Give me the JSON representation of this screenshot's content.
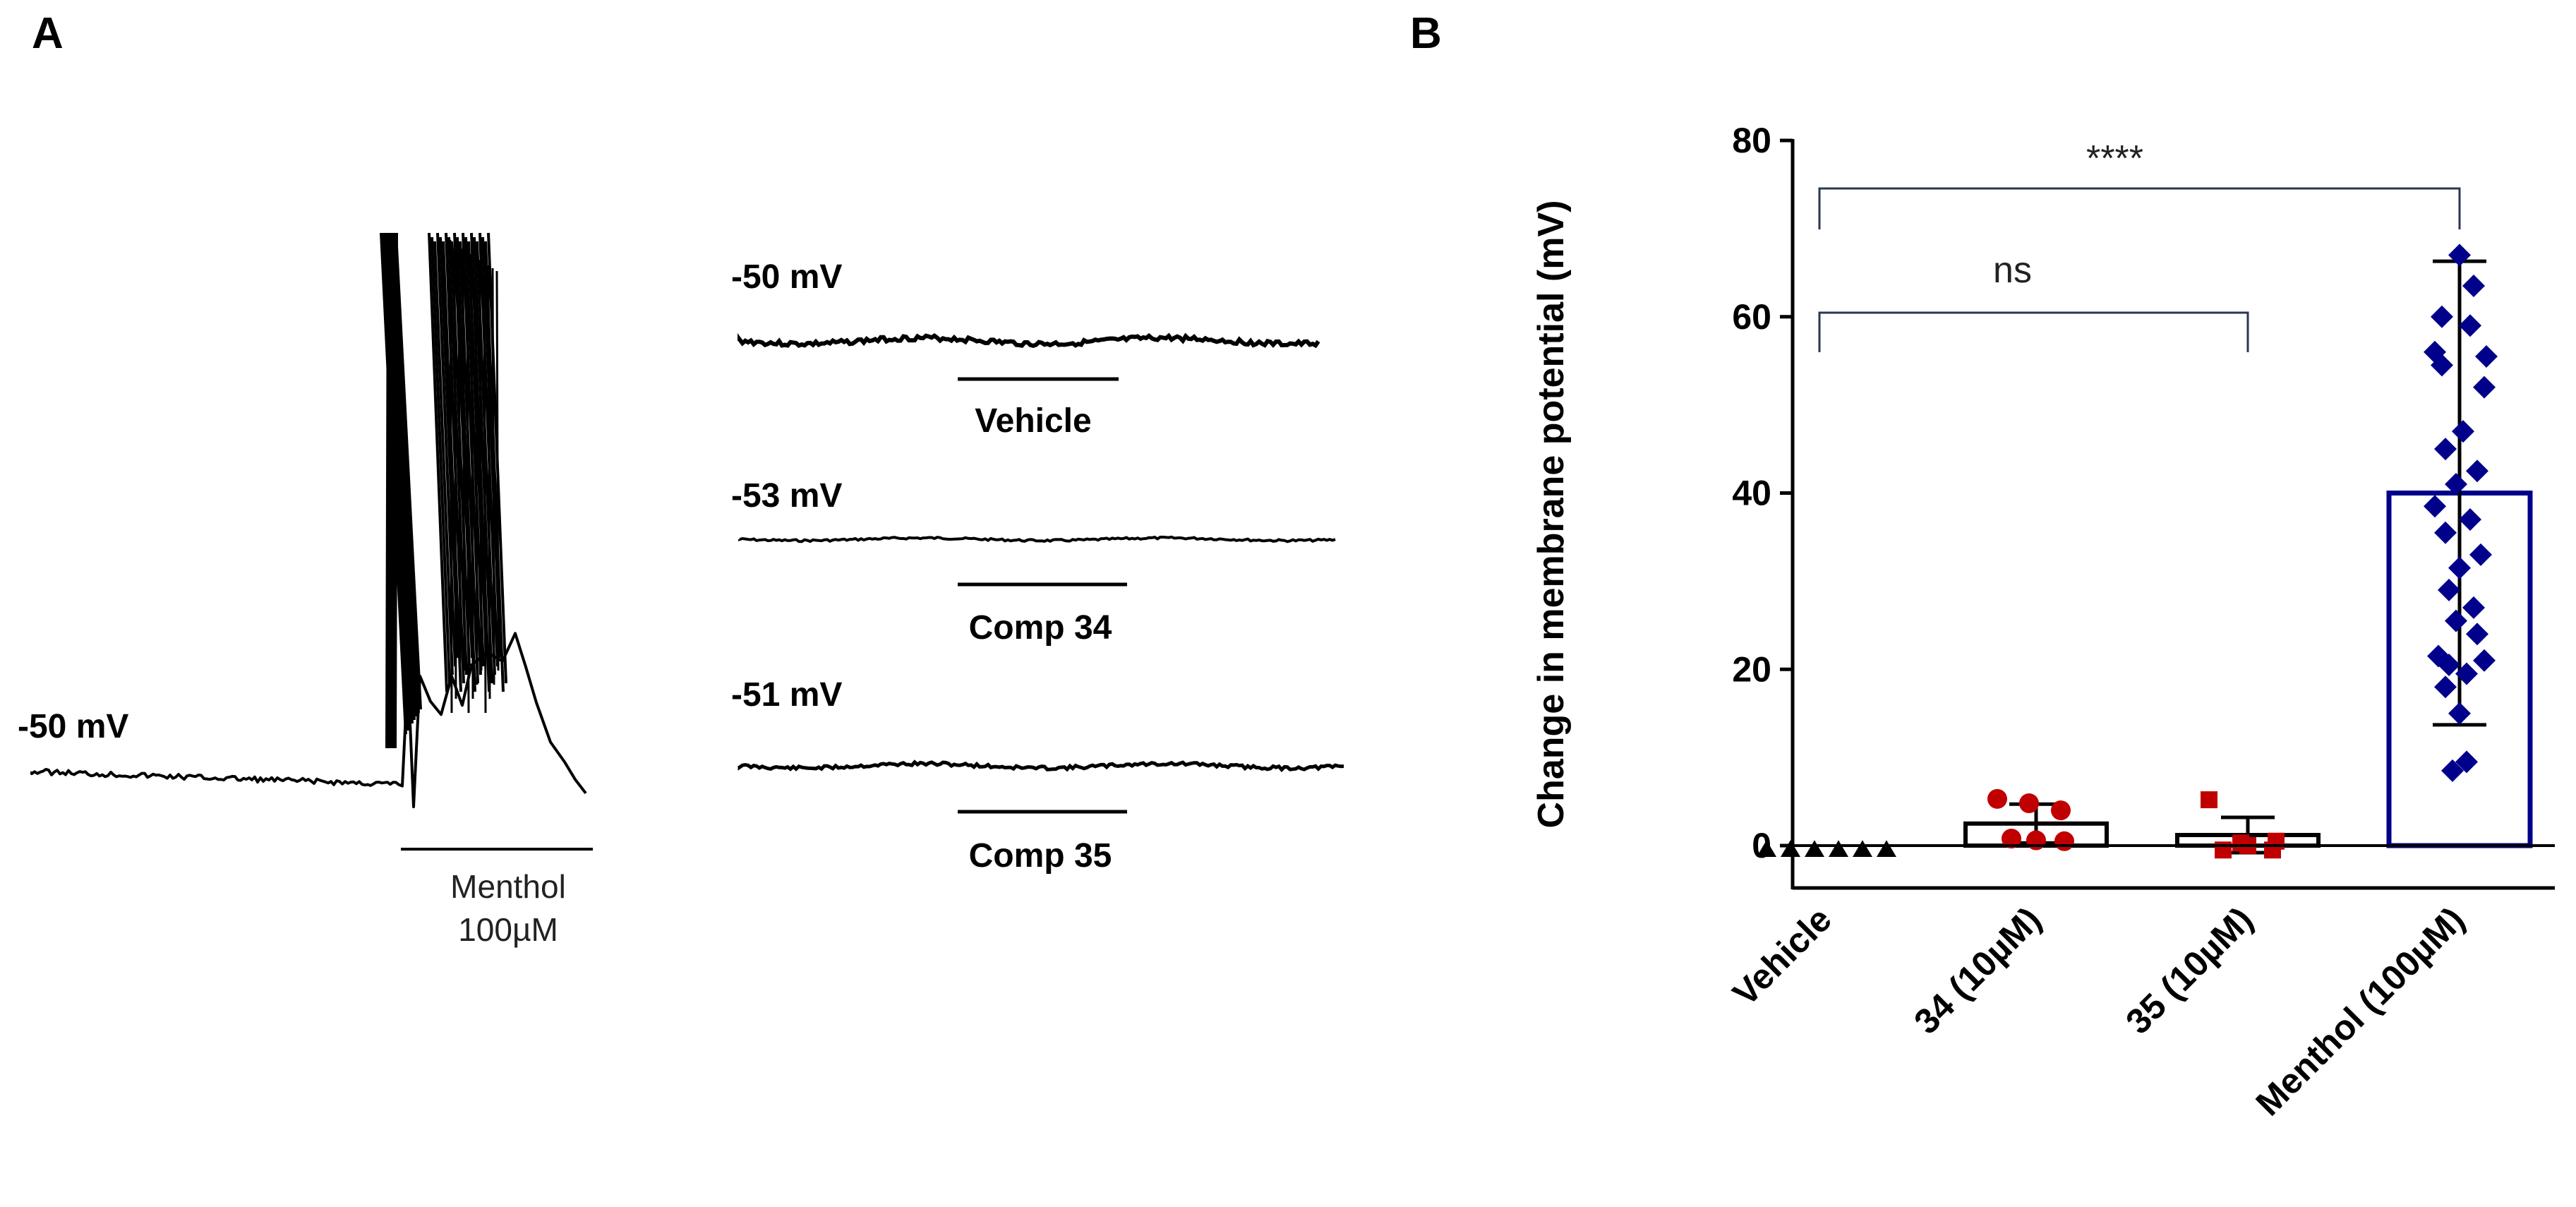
{
  "panels": {
    "a_label": "A",
    "b_label": "B"
  },
  "panel_a": {
    "main_trace": {
      "baseline_label": "-50 mV",
      "stim_line1": "Menthol",
      "stim_line2": "100µM"
    },
    "traces": [
      {
        "baseline_label": "-50 mV",
        "stim_label": "Vehicle"
      },
      {
        "baseline_label": "-53 mV",
        "stim_label": "Comp 34"
      },
      {
        "baseline_label": "-51 mV",
        "stim_label": "Comp 35"
      }
    ]
  },
  "chart_data": {
    "type": "bar",
    "title": "",
    "xlabel": "",
    "ylabel": "Change in membrane potential (mV)",
    "ylim": [
      0,
      80
    ],
    "yticks": [
      0,
      20,
      40,
      60,
      80
    ],
    "categories": [
      "Vehicle",
      "34 (10µM)",
      "35 (10µM)",
      "Menthol (100µM)"
    ],
    "means": [
      0,
      2.5,
      1.2,
      40
    ],
    "errors": [
      0,
      2.2,
      2.0,
      26.3
    ],
    "colors": [
      "#000000",
      "#c00000",
      "#c00000",
      "#00008b"
    ],
    "markers": [
      "triangle",
      "circle",
      "square",
      "diamond"
    ],
    "points": [
      [
        -0.5,
        -0.5,
        -0.5,
        -0.5,
        -0.5,
        -0.5
      ],
      [
        5.3,
        4.8,
        4.0,
        0.8,
        0.6,
        0.5
      ],
      [
        5.2,
        0.3,
        -0.5,
        -0.5,
        0.0,
        0.5
      ],
      [
        67,
        63.5,
        60,
        59,
        56,
        55.5,
        54.5,
        52,
        47,
        45,
        42.5,
        41,
        38.5,
        37,
        35.5,
        33,
        31.5,
        29,
        27,
        25.5,
        24,
        21.5,
        21,
        20.5,
        19.5,
        18,
        15,
        9.5,
        8.5
      ]
    ],
    "significance": [
      {
        "from": 0,
        "to": 3,
        "label": "****"
      },
      {
        "from": 0,
        "to": 2,
        "label": "ns"
      }
    ]
  }
}
